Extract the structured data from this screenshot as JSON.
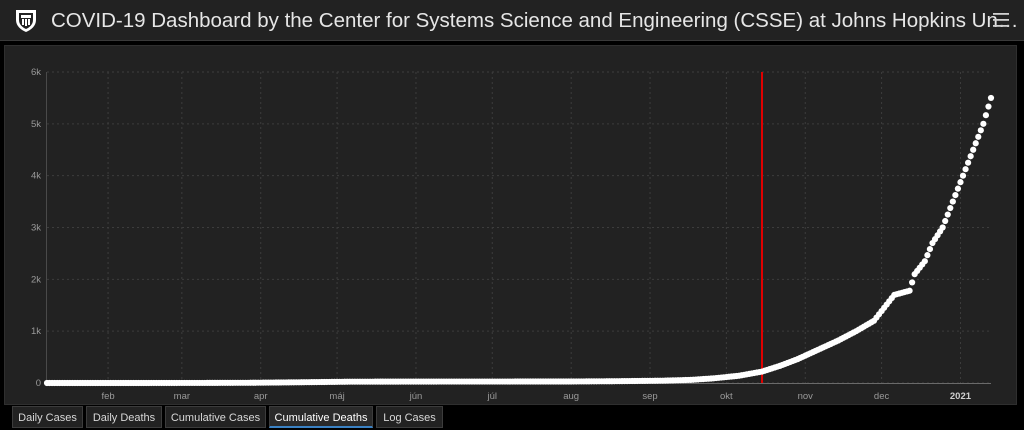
{
  "header": {
    "title": "COVID-19 Dashboard by the Center for Systems Science and Engineering (CSSE) at Johns Hopkins Un…",
    "logo_icon": "jhu-shield-icon",
    "menu_icon": "hamburger-menu-icon"
  },
  "tabs": [
    {
      "label": "Daily Cases",
      "active": false
    },
    {
      "label": "Daily Deaths",
      "active": false
    },
    {
      "label": "Cumulative Cases",
      "active": false
    },
    {
      "label": "Cumulative Deaths",
      "active": true
    },
    {
      "label": "Log Cases",
      "active": false
    }
  ],
  "colors": {
    "background": "#000000",
    "panel": "#222222",
    "points": "#ffffff",
    "marker_line": "#e00000",
    "active_tab_accent": "#3b82c4"
  },
  "chart_data": {
    "type": "scatter",
    "title": "",
    "xlabel": "",
    "ylabel": "",
    "x_start": "2020-01-22",
    "x_end": "2021-01-27",
    "x_ticks": [
      {
        "label": "feb",
        "date": "2020-02-15",
        "bold": false
      },
      {
        "label": "mar",
        "date": "2020-03-15",
        "bold": false
      },
      {
        "label": "apr",
        "date": "2020-04-15",
        "bold": false
      },
      {
        "label": "máj",
        "date": "2020-05-15",
        "bold": false
      },
      {
        "label": "jún",
        "date": "2020-06-15",
        "bold": false
      },
      {
        "label": "júl",
        "date": "2020-07-15",
        "bold": false
      },
      {
        "label": "aug",
        "date": "2020-08-15",
        "bold": false
      },
      {
        "label": "sep",
        "date": "2020-09-15",
        "bold": false
      },
      {
        "label": "okt",
        "date": "2020-10-15",
        "bold": false
      },
      {
        "label": "nov",
        "date": "2020-11-15",
        "bold": false
      },
      {
        "label": "dec",
        "date": "2020-12-15",
        "bold": false
      },
      {
        "label": "2021",
        "date": "2021-01-15",
        "bold": true
      }
    ],
    "y_ticks": [
      {
        "label": "0",
        "value": 0
      },
      {
        "label": "1k",
        "value": 1000
      },
      {
        "label": "2k",
        "value": 2000
      },
      {
        "label": "3k",
        "value": 3000
      },
      {
        "label": "4k",
        "value": 4000
      },
      {
        "label": "5k",
        "value": 5000
      },
      {
        "label": "6k",
        "value": 6000
      }
    ],
    "ylim": [
      0,
      6000
    ],
    "grid": true,
    "vertical_marker_date": "2020-10-29",
    "series": [
      {
        "name": "",
        "values": [
          [
            "2020-01-22",
            0
          ],
          [
            "2020-03-01",
            0
          ],
          [
            "2020-03-20",
            1
          ],
          [
            "2020-04-10",
            4
          ],
          [
            "2020-05-01",
            14
          ],
          [
            "2020-05-20",
            25
          ],
          [
            "2020-06-15",
            27
          ],
          [
            "2020-07-15",
            28
          ],
          [
            "2020-08-15",
            29
          ],
          [
            "2020-09-01",
            34
          ],
          [
            "2020-09-20",
            45
          ],
          [
            "2020-10-01",
            60
          ],
          [
            "2020-10-10",
            90
          ],
          [
            "2020-10-20",
            140
          ],
          [
            "2020-10-29",
            220
          ],
          [
            "2020-11-05",
            330
          ],
          [
            "2020-11-12",
            460
          ],
          [
            "2020-11-20",
            640
          ],
          [
            "2020-11-28",
            820
          ],
          [
            "2020-12-05",
            1000
          ],
          [
            "2020-12-12",
            1200
          ],
          [
            "2020-12-16",
            1450
          ],
          [
            "2020-12-20",
            1700
          ],
          [
            "2020-12-26",
            1780
          ],
          [
            "2020-12-28",
            2100
          ],
          [
            "2021-01-01",
            2350
          ],
          [
            "2021-01-04",
            2700
          ],
          [
            "2021-01-08",
            3000
          ],
          [
            "2021-01-12",
            3500
          ],
          [
            "2021-01-16",
            4000
          ],
          [
            "2021-01-20",
            4500
          ],
          [
            "2021-01-24",
            5000
          ],
          [
            "2021-01-27",
            5500
          ]
        ]
      }
    ]
  }
}
